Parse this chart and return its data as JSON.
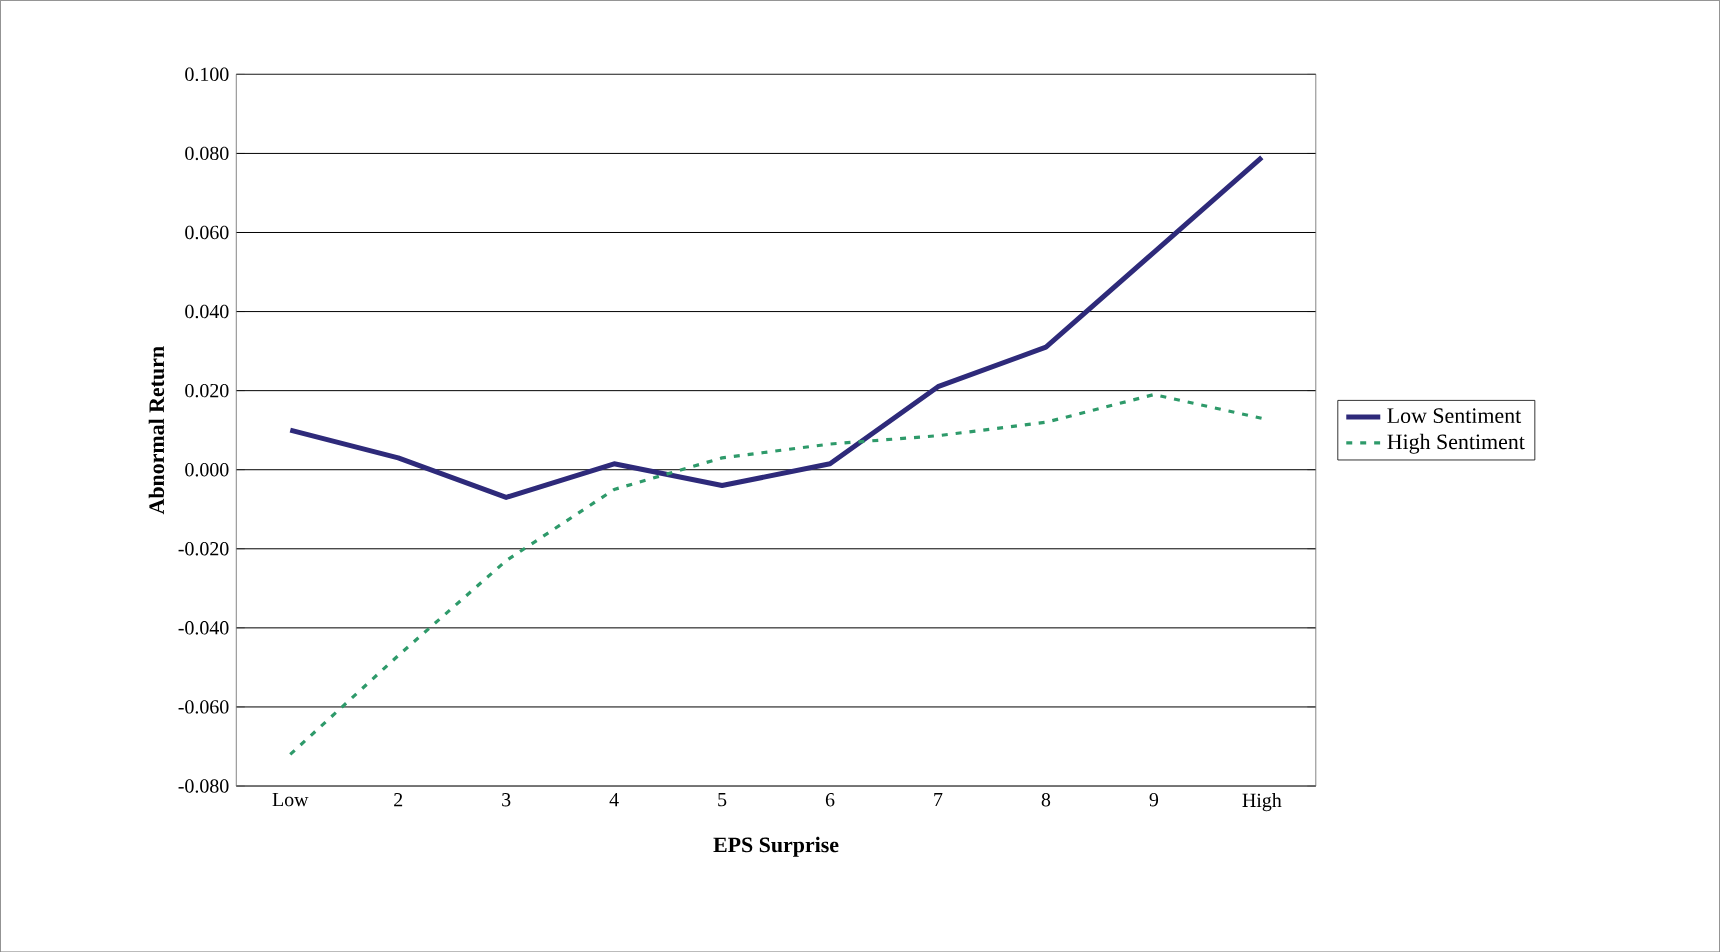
{
  "chart_data": {
    "type": "line",
    "xlabel": "EPS Surprise",
    "ylabel": "Abnormal Return",
    "categories": [
      "Low",
      "2",
      "3",
      "4",
      "5",
      "6",
      "7",
      "8",
      "9",
      "High"
    ],
    "ylim": [
      -0.08,
      0.1
    ],
    "yticks": [
      {
        "value": -0.08,
        "label": "-0.080"
      },
      {
        "value": -0.06,
        "label": "-0.060"
      },
      {
        "value": -0.04,
        "label": "-0.040"
      },
      {
        "value": -0.02,
        "label": "-0.020"
      },
      {
        "value": 0,
        "label": "0.000"
      },
      {
        "value": 0.02,
        "label": "0.020"
      },
      {
        "value": 0.04,
        "label": "0.040"
      },
      {
        "value": 0.06,
        "label": "0.060"
      },
      {
        "value": 0.08,
        "label": "0.080"
      },
      {
        "value": 0.1,
        "label": "0.100"
      }
    ],
    "grid": "y",
    "legend": "right",
    "marker": "none",
    "series": [
      {
        "name": "Low Sentiment",
        "color": "#2e2a7a",
        "line_style": "solid",
        "values": [
          0.01,
          0.003,
          -0.007,
          0.0015,
          -0.004,
          0.0015,
          0.021,
          0.031,
          0.055,
          0.079
        ]
      },
      {
        "name": "High Sentiment",
        "color": "#2e9a6a",
        "line_style": "dashed",
        "values": [
          -0.072,
          -0.047,
          -0.023,
          -0.005,
          0.003,
          0.0065,
          0.0086,
          0.012,
          0.019,
          0.013
        ]
      }
    ]
  }
}
